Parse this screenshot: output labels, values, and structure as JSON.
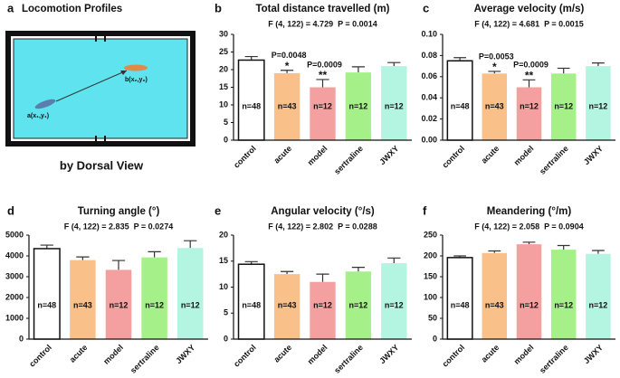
{
  "panel_a": {
    "label": "a",
    "title": "Locomotion Profiles",
    "caption": "by Dorsal View",
    "start_point": "a(x₁,y₁)",
    "end_point": "b(x₂,y₂)"
  },
  "chart_data": [
    {
      "type": "bar",
      "label": "b",
      "title": "Total distance travelled (m)",
      "subtitle": "F (4, 122) = 4.729  P = 0.0014",
      "categories": [
        "control",
        "acute",
        "model",
        "sertraline",
        "JWXY"
      ],
      "values": [
        22.7,
        19,
        15,
        19.2,
        21
      ],
      "errors": [
        1,
        0.8,
        2.2,
        1.6,
        1
      ],
      "n_labels": [
        "n=48",
        "n=43",
        "n=12",
        "n=12",
        "n=12"
      ],
      "p_labels": [
        null,
        "P=0.0048",
        "P=0.0009",
        null,
        null
      ],
      "star_labels": [
        null,
        "*",
        "**",
        null,
        null
      ],
      "colors": [
        "#ffffff",
        "#f9c08a",
        "#f4a0a0",
        "#a6f08a",
        "#b3f5e0"
      ],
      "ylim": [
        0,
        30
      ],
      "yticks": [
        0,
        5,
        10,
        15,
        20,
        25,
        30
      ]
    },
    {
      "type": "bar",
      "label": "c",
      "title": "Average velocity (m/s)",
      "subtitle": "F (4, 122) = 4.681  P = 0.0015",
      "categories": [
        "control",
        "acute",
        "model",
        "sertraline",
        "JWXY"
      ],
      "values": [
        0.075,
        0.063,
        0.05,
        0.063,
        0.07
      ],
      "errors": [
        0.003,
        0.002,
        0.007,
        0.005,
        0.003
      ],
      "n_labels": [
        "n=48",
        "n=43",
        "n=12",
        "n=12",
        "n=12"
      ],
      "p_labels": [
        null,
        "P=0.0053",
        "P=0.0009",
        null,
        null
      ],
      "star_labels": [
        null,
        "*",
        "**",
        null,
        null
      ],
      "colors": [
        "#ffffff",
        "#f9c08a",
        "#f4a0a0",
        "#a6f08a",
        "#b3f5e0"
      ],
      "ylim": [
        0,
        0.1
      ],
      "yticks": [
        {
          "value": 0,
          "label": "0.00"
        },
        {
          "value": 0.02,
          "label": "0.02"
        },
        {
          "value": 0.04,
          "label": "0.04"
        },
        {
          "value": 0.06,
          "label": "0.06"
        },
        {
          "value": 0.08,
          "label": "0.08"
        },
        {
          "value": 0.1,
          "label": "0.10"
        }
      ]
    },
    {
      "type": "bar",
      "label": "d",
      "title": "Turning angle (°)",
      "subtitle": "F (4, 122) = 2.835  P = 0.0274",
      "categories": [
        "control",
        "acute",
        "model",
        "sertraline",
        "JWXY"
      ],
      "values": [
        4350,
        3800,
        3330,
        3930,
        4380
      ],
      "errors": [
        170,
        150,
        450,
        270,
        350
      ],
      "n_labels": [
        "n=48",
        "n=43",
        "n=12",
        "n=12",
        "n=12"
      ],
      "colors": [
        "#ffffff",
        "#f9c08a",
        "#f4a0a0",
        "#a6f08a",
        "#b3f5e0"
      ],
      "ylim": [
        0,
        5000
      ],
      "yticks": [
        0,
        1000,
        2000,
        3000,
        4000,
        5000
      ]
    },
    {
      "type": "bar",
      "label": "e",
      "title": "Angular velocity (°/s)",
      "subtitle": "F (4, 122) = 2.802  P = 0.0288",
      "categories": [
        "control",
        "acute",
        "model",
        "sertraline",
        "JWXY"
      ],
      "values": [
        14.4,
        12.5,
        11,
        13,
        14.6
      ],
      "errors": [
        0.5,
        0.5,
        1.5,
        0.8,
        1
      ],
      "n_labels": [
        "n=48",
        "n=43",
        "n=12",
        "n=12",
        "n=12"
      ],
      "colors": [
        "#ffffff",
        "#f9c08a",
        "#f4a0a0",
        "#a6f08a",
        "#b3f5e0"
      ],
      "ylim": [
        0,
        20
      ],
      "yticks": [
        0,
        5,
        10,
        15,
        20
      ]
    },
    {
      "type": "bar",
      "label": "f",
      "title": "Meandering (°/m)",
      "subtitle": "F (4, 122) = 2.058  P = 0.0904",
      "categories": [
        "control",
        "acute",
        "model",
        "sertraline",
        "JWXY"
      ],
      "values": [
        196,
        207,
        228,
        215,
        205
      ],
      "errors": [
        4,
        5,
        5,
        10,
        8
      ],
      "n_labels": [
        "n=48",
        "n=43",
        "n=12",
        "n=12",
        "n=12"
      ],
      "colors": [
        "#ffffff",
        "#f9c08a",
        "#f4a0a0",
        "#a6f08a",
        "#b3f5e0"
      ],
      "ylim": [
        0,
        250
      ],
      "yticks": [
        0,
        50,
        100,
        150,
        200,
        250
      ]
    }
  ]
}
